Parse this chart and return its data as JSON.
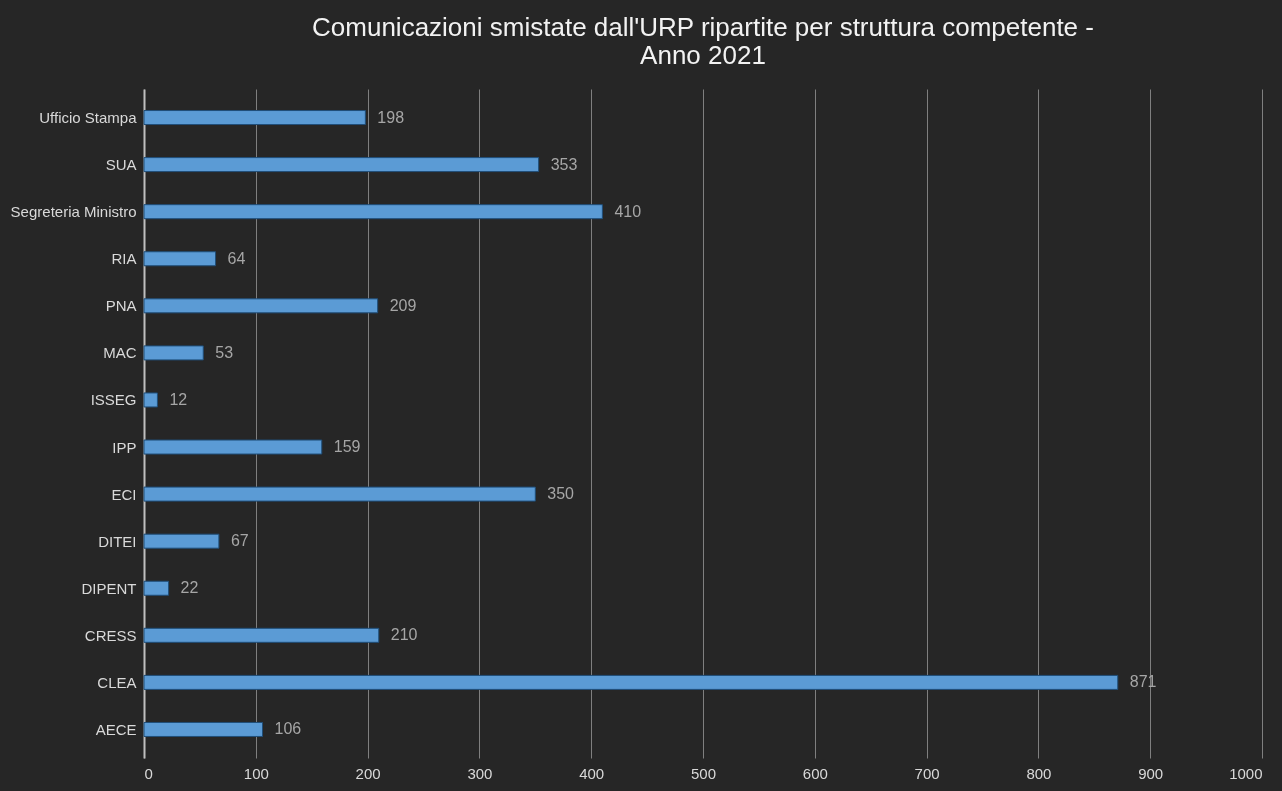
{
  "chart_data": {
    "type": "bar",
    "orientation": "horizontal",
    "title": "Comunicazioni smistate dall'URP ripartite per struttura competente - Anno 2021",
    "categories": [
      "Ufficio Stampa",
      "SUA",
      "Segreteria Ministro",
      "RIA",
      "PNA",
      "MAC",
      "ISSEG",
      "IPP",
      "ECI",
      "DITEI",
      "DIPENT",
      "CRESS",
      "CLEA",
      "AECE"
    ],
    "values": [
      198,
      353,
      410,
      64,
      209,
      53,
      12,
      159,
      350,
      67,
      22,
      210,
      871,
      106
    ],
    "color": "#5b9bd5",
    "xlim": [
      0,
      1000
    ],
    "xticks": [
      0,
      100,
      200,
      300,
      400,
      500,
      600,
      700,
      800,
      900,
      1000
    ],
    "grid": "x",
    "data_labels": true
  }
}
